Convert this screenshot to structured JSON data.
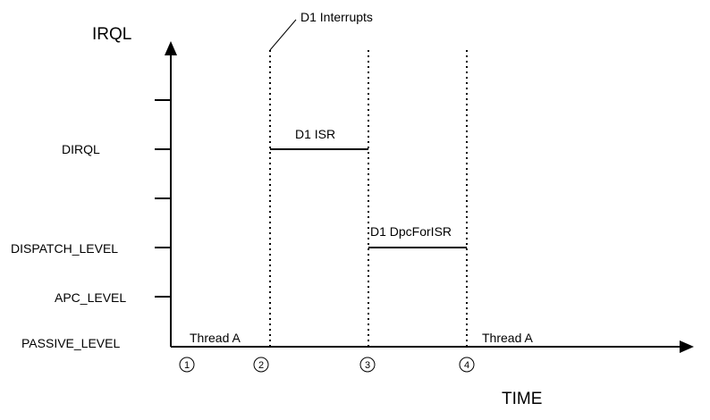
{
  "axes": {
    "y_title": "IRQL",
    "x_title": "TIME"
  },
  "levels": {
    "passive": "PASSIVE_LEVEL",
    "apc": "APC_LEVEL",
    "dispatch": "DISPATCH_LEVEL",
    "dirql": "DIRQL"
  },
  "segments": {
    "thread_a_start": "Thread A",
    "isr": "D1 ISR",
    "dpc": "D1 DpcForISR",
    "thread_a_end": "Thread A"
  },
  "events": {
    "interrupt": "D1 Interrupts"
  },
  "markers": [
    "1",
    "2",
    "3",
    "4"
  ]
}
